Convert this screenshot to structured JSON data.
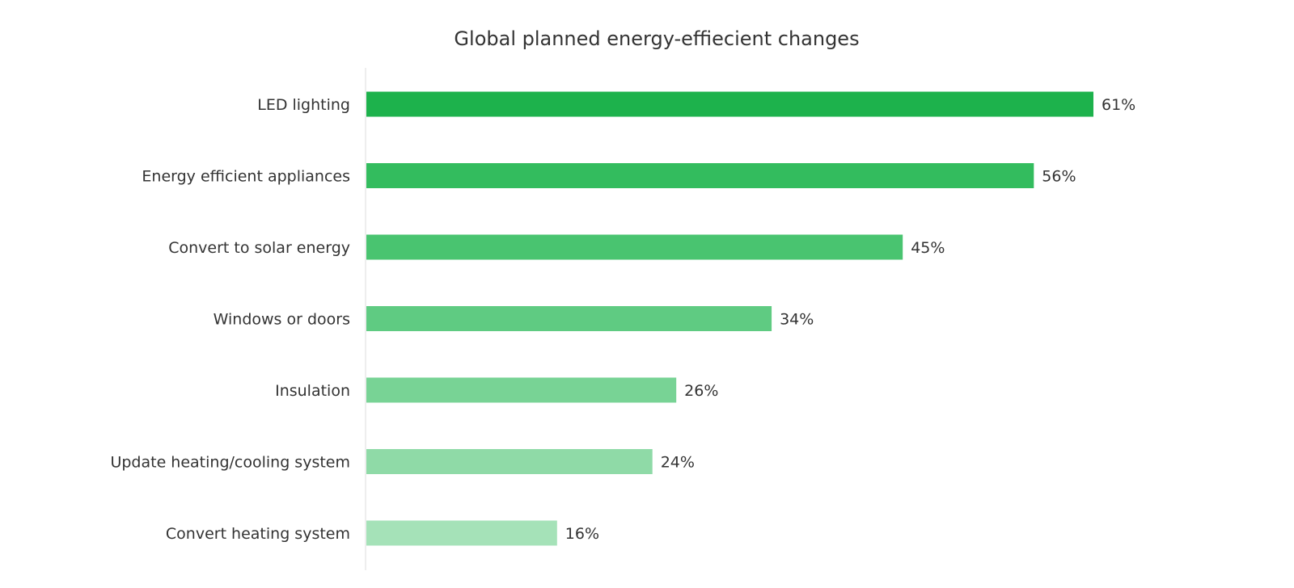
{
  "chart_data": {
    "type": "bar",
    "orientation": "horizontal",
    "title": "Global planned energy-effiecient changes",
    "xlabel": "",
    "ylabel": "",
    "categories": [
      "LED lighting",
      "Energy efficient appliances",
      "Convert to solar energy",
      "Windows or doors",
      "Insulation",
      "Update heating/cooling system",
      "Convert heating system"
    ],
    "values": [
      61,
      56,
      45,
      34,
      26,
      24,
      16
    ],
    "value_labels": [
      "61%",
      "56%",
      "45%",
      "34%",
      "26%",
      "24%",
      "16%"
    ],
    "xlim": [
      0,
      61
    ],
    "unit": "%",
    "grid": false,
    "legend": "none",
    "bar_colors": [
      "#1db24c",
      "#33bc5e",
      "#49c470",
      "#5fcb82",
      "#78d395",
      "#8fdaa7",
      "#a5e2b8"
    ],
    "axis_line_color": "#dddddd"
  }
}
